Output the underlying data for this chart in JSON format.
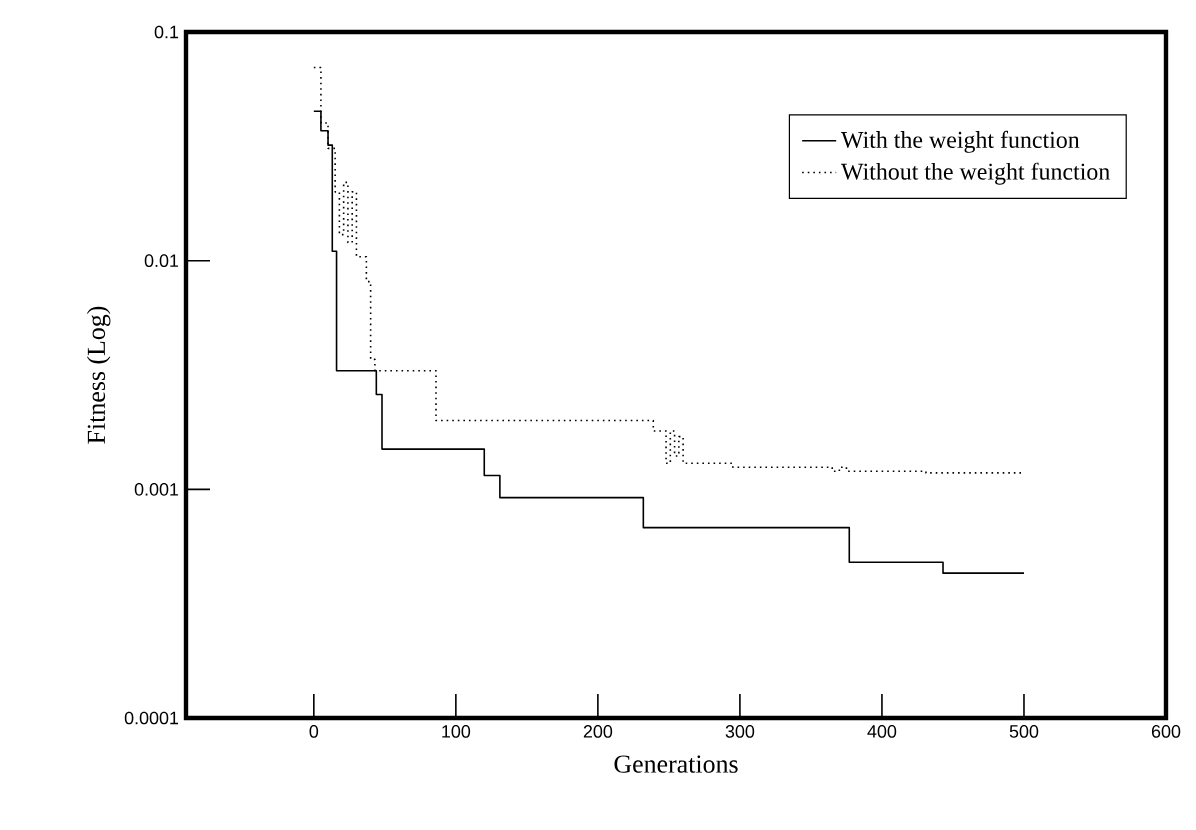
{
  "chart_data": {
    "type": "step",
    "xlabel": "Generations",
    "ylabel": "Fitness (Log)",
    "log": "y",
    "xlim": [
      -90,
      600
    ],
    "xticks": [
      0,
      100,
      200,
      300,
      400,
      500,
      600
    ],
    "ylim": [
      0.0001,
      0.1
    ],
    "yticks": [
      0.0001,
      0.001,
      0.01,
      0.1
    ],
    "legend": "top right",
    "grid": false,
    "series": [
      {
        "name": "With the weight function",
        "color": "#000000",
        "line_style": "solid",
        "x": [
          0,
          5,
          10,
          13,
          16,
          44,
          48,
          120,
          131,
          232,
          377,
          443,
          500
        ],
        "values": [
          0.045,
          0.037,
          0.032,
          0.011,
          0.0033,
          0.0026,
          0.0015,
          0.00115,
          0.00092,
          0.00068,
          0.00048,
          0.00043,
          0.00043
        ]
      },
      {
        "name": "Without the weight function",
        "color": "#000000",
        "line_style": "dotted",
        "x": [
          0,
          5,
          10,
          15,
          18,
          21,
          24,
          27,
          30,
          37,
          40,
          43,
          86,
          239,
          248,
          251,
          254,
          257,
          260,
          295,
          365,
          370,
          375,
          431,
          500
        ],
        "values": [
          0.07,
          0.04,
          0.031,
          0.02,
          0.013,
          0.022,
          0.012,
          0.02,
          0.0104,
          0.0081,
          0.0037,
          0.0033,
          0.002,
          0.0018,
          0.0013,
          0.0018,
          0.0014,
          0.0017,
          0.0013,
          0.00125,
          0.0012,
          0.00125,
          0.0012,
          0.00118,
          0.00118
        ]
      }
    ]
  }
}
